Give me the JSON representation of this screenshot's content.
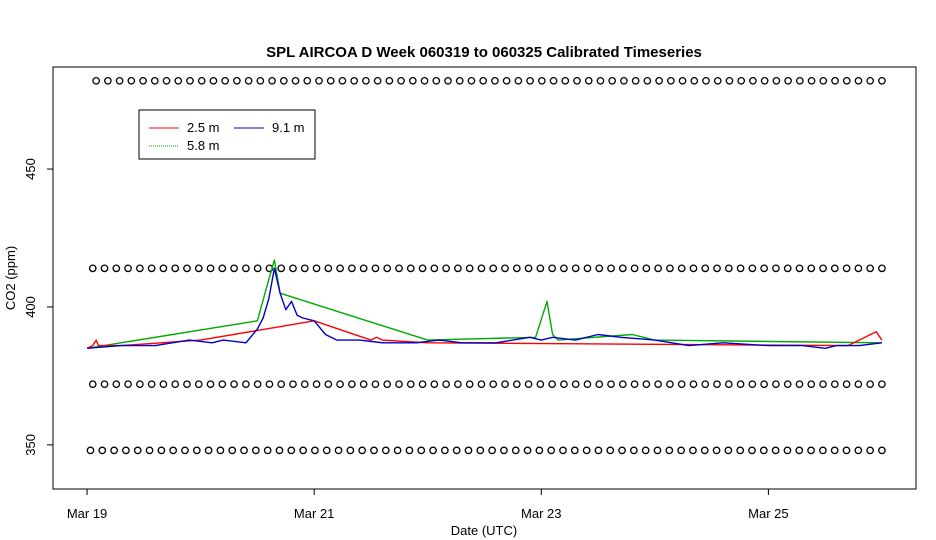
{
  "chart_data": {
    "type": "line",
    "title": "SPL AIRCOA D  Week 060319 to 060325  Calibrated Timeseries",
    "xlabel": "Date (UTC)",
    "ylabel": "CO2 (ppm)",
    "x_unit": "days since Mar 19 00:00 UTC",
    "xlim": [
      -0.3,
      7.3
    ],
    "ylim": [
      334,
      487
    ],
    "x_ticks": [
      {
        "value": 0,
        "label": "Mar 19"
      },
      {
        "value": 2,
        "label": "Mar 21"
      },
      {
        "value": 4,
        "label": "Mar 23"
      },
      {
        "value": 6,
        "label": "Mar 25"
      }
    ],
    "y_ticks": [
      {
        "value": 350,
        "label": "350"
      },
      {
        "value": 400,
        "label": "400"
      },
      {
        "value": 450,
        "label": "450"
      }
    ],
    "grid": false,
    "legend": {
      "position": "top-left",
      "entries": [
        {
          "name": "2.5 m",
          "color": "#ff0000"
        },
        {
          "name": "9.1 m",
          "color": "#0000cc"
        },
        {
          "name": "5.8 m",
          "color": "#00aa00"
        }
      ]
    },
    "series": [
      {
        "name": "9.1 m",
        "color": "#0000cc",
        "x": [
          0.0,
          0.3,
          0.6,
          0.9,
          1.1,
          1.2,
          1.4,
          1.5,
          1.55,
          1.6,
          1.65,
          1.7,
          1.75,
          1.8,
          1.85,
          1.9,
          2.0,
          2.1,
          2.2,
          2.4,
          2.6,
          2.9,
          3.1,
          3.3,
          3.6,
          3.9,
          4.0,
          4.1,
          4.3,
          4.5,
          4.7,
          5.0,
          5.3,
          5.6,
          6.0,
          6.3,
          6.5,
          6.6,
          6.8,
          7.0
        ],
        "y": [
          385,
          386,
          386,
          388,
          387,
          388,
          387,
          392,
          396,
          403,
          414,
          405,
          399,
          402,
          397,
          396,
          395,
          390,
          388,
          388,
          387,
          387,
          388,
          387,
          387,
          389,
          388,
          389,
          388,
          390,
          389,
          388,
          386,
          387,
          386,
          386,
          385,
          386,
          386,
          387
        ]
      },
      {
        "name": "2.5 m",
        "color": "#ff0000",
        "x": [
          0.0,
          0.05,
          0.08,
          0.1,
          0.3,
          1.0,
          2.0,
          2.5,
          2.55,
          2.6,
          3.0,
          6.7,
          6.8,
          6.9,
          6.95,
          7.0
        ],
        "y": [
          385,
          386,
          388,
          386,
          386,
          388,
          395,
          388,
          389,
          388,
          387,
          386,
          388,
          390,
          391,
          388
        ]
      },
      {
        "name": "5.8 m",
        "color": "#00aa00",
        "x": [
          0.0,
          1.5,
          1.6,
          1.65,
          1.7,
          3.0,
          3.95,
          4.05,
          4.1,
          4.15,
          4.8,
          5.0,
          7.0
        ],
        "y": [
          385,
          395,
          410,
          417,
          405,
          388,
          389,
          402,
          390,
          388,
          390,
          388,
          387
        ]
      }
    ],
    "marker_rows": [
      {
        "y": 482,
        "x_start": 0.08,
        "x_end": 7.0,
        "count": 68
      },
      {
        "y": 414,
        "x_start": 0.05,
        "x_end": 7.0,
        "count": 68
      },
      {
        "y": 372,
        "x_start": 0.05,
        "x_end": 7.0,
        "count": 68
      },
      {
        "y": 348,
        "x_start": 0.03,
        "x_end": 7.0,
        "count": 68
      }
    ]
  }
}
